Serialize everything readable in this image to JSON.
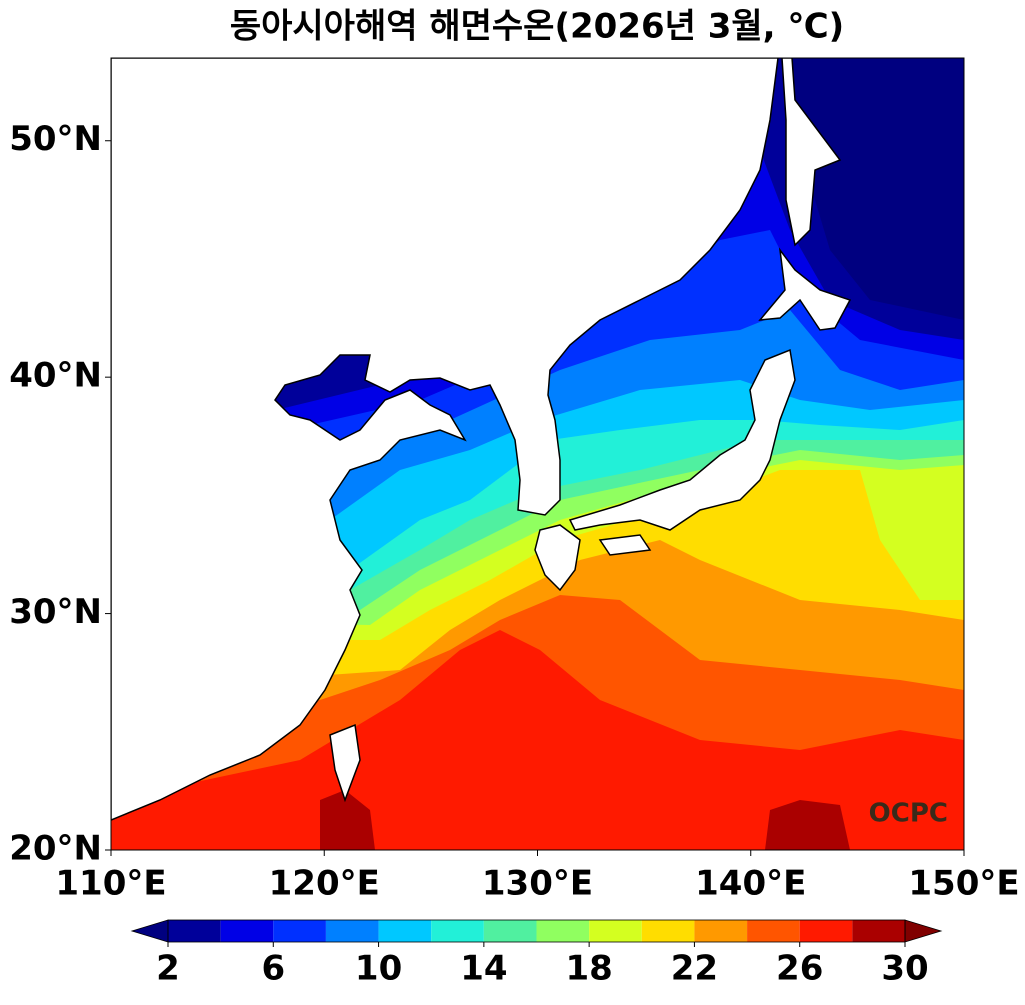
{
  "title": "동아시아해역 해면수온(2026년 3월, ℃)",
  "map": {
    "type": "filled-contour",
    "xlim": [
      110,
      150
    ],
    "ylim": [
      20,
      53.5
    ],
    "xticks": [
      {
        "value": 110,
        "label": "110°E"
      },
      {
        "value": 120,
        "label": "120°E"
      },
      {
        "value": 130,
        "label": "130°E"
      },
      {
        "value": 140,
        "label": "140°E"
      },
      {
        "value": 150,
        "label": "150°E"
      }
    ],
    "yticks": [
      {
        "value": 20,
        "label": "20°N"
      },
      {
        "value": 30,
        "label": "30°N"
      },
      {
        "value": 40,
        "label": "40°N"
      },
      {
        "value": 50,
        "label": "50°N"
      }
    ]
  },
  "colorbar": {
    "levels": [
      2,
      4,
      6,
      8,
      10,
      12,
      14,
      16,
      18,
      20,
      22,
      24,
      26,
      28,
      30
    ],
    "colors": [
      "#00009a",
      "#0000e6",
      "#0030ff",
      "#0080ff",
      "#00c8ff",
      "#22f0d8",
      "#50f0a0",
      "#90ff60",
      "#d4ff20",
      "#ffdd00",
      "#ff9900",
      "#ff5500",
      "#ff1a00",
      "#aa0000"
    ],
    "under_color": "#000080",
    "over_color": "#800000",
    "ticks": [
      2,
      6,
      10,
      14,
      18,
      22,
      26,
      30
    ]
  },
  "logo": "OCPC"
}
